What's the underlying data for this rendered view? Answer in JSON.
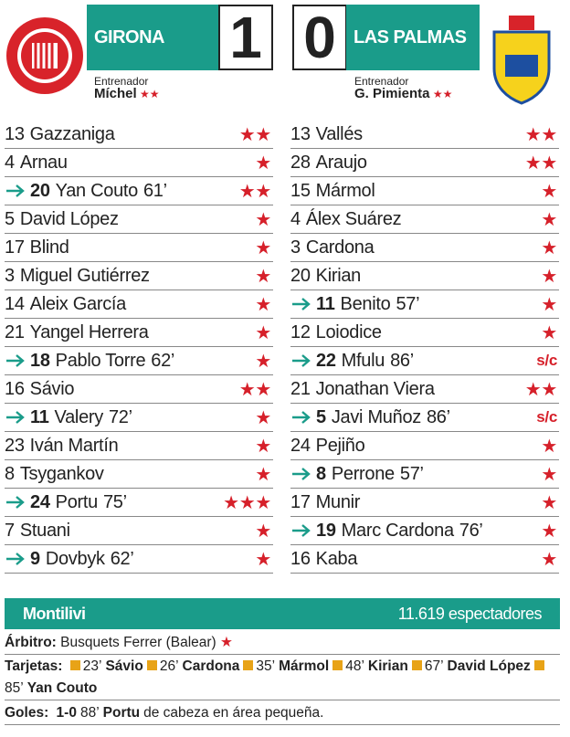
{
  "home": {
    "name": "GIRONA",
    "score": 1,
    "coach_label": "Entrenador",
    "coach": "Míchel",
    "coach_rating": "★★",
    "players": [
      {
        "number": 13,
        "name": "Gazzaniga",
        "rating": "★★"
      },
      {
        "number": 4,
        "name": "Arnau",
        "rating": "★"
      },
      {
        "sub": true,
        "number": 20,
        "name": "Yan Couto",
        "minute": "61’",
        "rating": "★★"
      },
      {
        "number": 5,
        "name": "David López",
        "rating": "★"
      },
      {
        "number": 17,
        "name": "Blind",
        "rating": "★"
      },
      {
        "number": 3,
        "name": "Miguel Gutiérrez",
        "rating": "★"
      },
      {
        "number": 14,
        "name": "Aleix García",
        "rating": "★"
      },
      {
        "number": 21,
        "name": "Yangel Herrera",
        "rating": "★"
      },
      {
        "sub": true,
        "number": 18,
        "name": "Pablo Torre",
        "minute": "62’",
        "rating": "★"
      },
      {
        "number": 16,
        "name": "Sávio",
        "rating": "★★"
      },
      {
        "sub": true,
        "number": 11,
        "name": "Valery",
        "minute": "72’",
        "rating": "★"
      },
      {
        "number": 23,
        "name": "Iván Martín",
        "rating": "★"
      },
      {
        "number": 8,
        "name": "Tsygankov",
        "rating": "★"
      },
      {
        "sub": true,
        "number": 24,
        "name": "Portu",
        "minute": "75’",
        "rating": "★★★"
      },
      {
        "number": 7,
        "name": "Stuani",
        "rating": "★"
      },
      {
        "sub": true,
        "number": 9,
        "name": "Dovbyk",
        "minute": "62’",
        "rating": "★"
      }
    ]
  },
  "away": {
    "name": "LAS PALMAS",
    "score": 0,
    "coach_label": "Entrenador",
    "coach": "G. Pimienta",
    "coach_rating": "★★",
    "players": [
      {
        "number": 13,
        "name": "Vallés",
        "rating": "★★"
      },
      {
        "number": 28,
        "name": "Araujo",
        "rating": "★★"
      },
      {
        "number": 15,
        "name": "Mármol",
        "rating": "★"
      },
      {
        "number": 4,
        "name": "Álex Suárez",
        "rating": "★"
      },
      {
        "number": 3,
        "name": "Cardona",
        "rating": "★"
      },
      {
        "number": 20,
        "name": "Kirian",
        "rating": "★"
      },
      {
        "sub": true,
        "number": 11,
        "name": "Benito",
        "minute": "57’",
        "rating": "★"
      },
      {
        "number": 12,
        "name": "Loiodice",
        "rating": "★"
      },
      {
        "sub": true,
        "number": 22,
        "name": "Mfulu",
        "minute": "86’",
        "rating": "s/c"
      },
      {
        "number": 21,
        "name": "Jonathan Viera",
        "rating": "★★"
      },
      {
        "sub": true,
        "number": 5,
        "name": "Javi Muñoz",
        "minute": "86’",
        "rating": "s/c"
      },
      {
        "number": 24,
        "name": "Pejiño",
        "rating": "★"
      },
      {
        "sub": true,
        "number": 8,
        "name": "Perrone",
        "minute": "57’",
        "rating": "★"
      },
      {
        "number": 17,
        "name": "Munir",
        "rating": "★"
      },
      {
        "sub": true,
        "number": 19,
        "name": "Marc Cardona",
        "minute": "76’",
        "rating": "★"
      },
      {
        "number": 16,
        "name": "Kaba",
        "rating": "★"
      }
    ]
  },
  "venue": "Montilivi",
  "attendance": "11.619 espectadores",
  "referee_label": "Árbitro:",
  "referee": "Busquets Ferrer (Balear)",
  "referee_rating": "★",
  "cards_label": "Tarjetas:",
  "cards": [
    {
      "minute": "23’",
      "player": "Sávio"
    },
    {
      "minute": "26’",
      "player": "Cardona"
    },
    {
      "minute": "35’",
      "player": "Mármol"
    },
    {
      "minute": "48’",
      "player": "Kirian"
    },
    {
      "minute": "67’",
      "player": "David López"
    },
    {
      "minute": "85’",
      "player": "Yan Couto"
    }
  ],
  "goals_label": "Goles:",
  "goals": [
    {
      "score": "1-0",
      "minute": "88’",
      "player": "Portu",
      "detail": "de cabeza en área pequeña."
    }
  ]
}
